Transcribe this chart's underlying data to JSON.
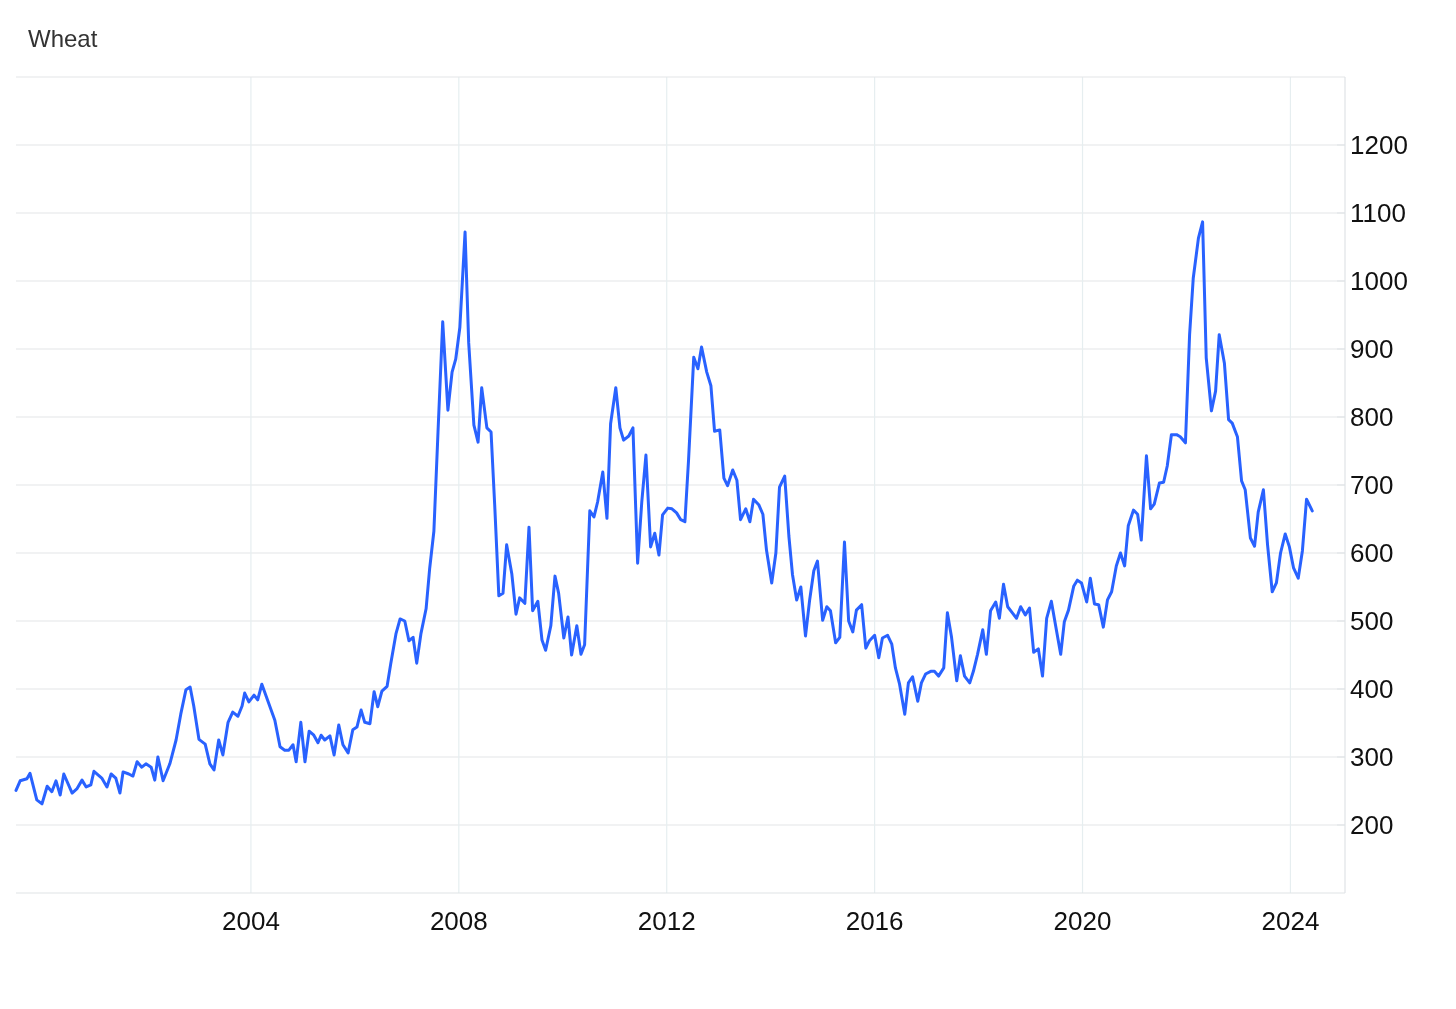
{
  "chart_data": {
    "type": "line",
    "title": "Wheat",
    "grid": true,
    "xlim": [
      1999.48,
      2025.05
    ],
    "xticks": [
      2004,
      2008,
      2012,
      2016,
      2020,
      2024
    ],
    "ylim": [
      100,
      1300
    ],
    "yticks": [
      200,
      300,
      400,
      500,
      600,
      700,
      800,
      900,
      1000,
      1100,
      1200
    ],
    "series": [
      {
        "color": "#2962ff",
        "x": [
          1999.48,
          1999.56,
          1999.69,
          1999.75,
          1999.88,
          1999.98,
          2000.08,
          2000.17,
          2000.25,
          2000.33,
          2000.4,
          2000.56,
          2000.65,
          2000.75,
          2000.83,
          2000.92,
          2000.98,
          2001.13,
          2001.23,
          2001.31,
          2001.4,
          2001.48,
          2001.54,
          2001.65,
          2001.73,
          2001.81,
          2001.9,
          2001.98,
          2002.08,
          2002.15,
          2002.21,
          2002.31,
          2002.44,
          2002.56,
          2002.65,
          2002.75,
          2002.83,
          2002.9,
          2003.0,
          2003.12,
          2003.21,
          2003.29,
          2003.38,
          2003.46,
          2003.56,
          2003.65,
          2003.75,
          2003.83,
          2003.88,
          2003.96,
          2004.06,
          2004.13,
          2004.21,
          2004.46,
          2004.56,
          2004.65,
          2004.73,
          2004.81,
          2004.87,
          2004.96,
          2005.04,
          2005.12,
          2005.21,
          2005.29,
          2005.35,
          2005.42,
          2005.52,
          2005.6,
          2005.69,
          2005.77,
          2005.87,
          2005.96,
          2006.04,
          2006.12,
          2006.19,
          2006.29,
          2006.37,
          2006.44,
          2006.52,
          2006.62,
          2006.69,
          2006.79,
          2006.87,
          2006.96,
          2007.04,
          2007.12,
          2007.19,
          2007.27,
          2007.37,
          2007.44,
          2007.52,
          2007.6,
          2007.69,
          2007.79,
          2007.87,
          2007.94,
          2008.02,
          2008.12,
          2008.19,
          2008.29,
          2008.37,
          2008.44,
          2008.54,
          2008.62,
          2008.69,
          2008.77,
          2008.85,
          2008.92,
          2009.02,
          2009.1,
          2009.17,
          2009.27,
          2009.35,
          2009.42,
          2009.52,
          2009.6,
          2009.67,
          2009.77,
          2009.85,
          2009.92,
          2010.02,
          2010.1,
          2010.17,
          2010.27,
          2010.35,
          2010.42,
          2010.52,
          2010.6,
          2010.67,
          2010.77,
          2010.85,
          2010.92,
          2011.02,
          2011.1,
          2011.17,
          2011.27,
          2011.35,
          2011.44,
          2011.52,
          2011.6,
          2011.69,
          2011.77,
          2011.85,
          2011.92,
          2012.02,
          2012.1,
          2012.19,
          2012.27,
          2012.35,
          2012.42,
          2012.52,
          2012.6,
          2012.67,
          2012.77,
          2012.85,
          2012.92,
          2013.02,
          2013.1,
          2013.17,
          2013.27,
          2013.35,
          2013.42,
          2013.52,
          2013.6,
          2013.67,
          2013.77,
          2013.85,
          2013.92,
          2014.02,
          2014.1,
          2014.17,
          2014.27,
          2014.35,
          2014.42,
          2014.5,
          2014.58,
          2014.67,
          2014.75,
          2014.83,
          2014.9,
          2015.0,
          2015.08,
          2015.15,
          2015.25,
          2015.33,
          2015.42,
          2015.5,
          2015.58,
          2015.65,
          2015.75,
          2015.83,
          2015.9,
          2016.0,
          2016.08,
          2016.15,
          2016.25,
          2016.33,
          2016.4,
          2016.48,
          2016.58,
          2016.65,
          2016.73,
          2016.83,
          2016.9,
          2016.98,
          2017.08,
          2017.15,
          2017.23,
          2017.33,
          2017.4,
          2017.48,
          2017.58,
          2017.65,
          2017.73,
          2017.83,
          2017.9,
          2017.98,
          2018.08,
          2018.15,
          2018.23,
          2018.33,
          2018.4,
          2018.48,
          2018.56,
          2018.65,
          2018.73,
          2018.81,
          2018.9,
          2018.98,
          2019.06,
          2019.15,
          2019.23,
          2019.31,
          2019.4,
          2019.48,
          2019.58,
          2019.65,
          2019.73,
          2019.83,
          2019.9,
          2019.98,
          2020.08,
          2020.15,
          2020.23,
          2020.31,
          2020.4,
          2020.48,
          2020.56,
          2020.65,
          2020.73,
          2020.81,
          2020.88,
          2020.98,
          2021.06,
          2021.13,
          2021.23,
          2021.31,
          2021.38,
          2021.48,
          2021.56,
          2021.63,
          2021.71,
          2021.81,
          2021.88,
          2021.98,
          2022.06,
          2022.13,
          2022.23,
          2022.31,
          2022.38,
          2022.48,
          2022.56,
          2022.63,
          2022.73,
          2022.81,
          2022.88,
          2022.98,
          2023.06,
          2023.13,
          2023.23,
          2023.31,
          2023.38,
          2023.48,
          2023.56,
          2023.65,
          2023.73,
          2023.81,
          2023.9,
          2023.98,
          2024.06,
          2024.15,
          2024.23,
          2024.31,
          2024.42
        ],
        "values": [
          251,
          265,
          268,
          276,
          237,
          231,
          257,
          249,
          265,
          244,
          275,
          247,
          253,
          266,
          256,
          259,
          279,
          269,
          256,
          275,
          269,
          247,
          278,
          275,
          272,
          293,
          285,
          290,
          285,
          266,
          300,
          265,
          290,
          325,
          363,
          399,
          403,
          375,
          326,
          319,
          290,
          281,
          325,
          303,
          351,
          366,
          360,
          375,
          394,
          381,
          391,
          384,
          407,
          354,
          315,
          310,
          310,
          318,
          293,
          351,
          293,
          338,
          332,
          321,
          332,
          325,
          331,
          303,
          347,
          318,
          306,
          340,
          344,
          369,
          351,
          349,
          396,
          374,
          397,
          404,
          437,
          481,
          503,
          500,
          471,
          476,
          438,
          481,
          518,
          578,
          632,
          779,
          940,
          810,
          866,
          885,
          932,
          1072,
          909,
          788,
          763,
          843,
          784,
          778,
          671,
          537,
          541,
          612,
          569,
          510,
          534,
          526,
          638,
          515,
          529,
          472,
          457,
          493,
          566,
          541,
          475,
          506,
          450,
          493,
          451,
          465,
          662,
          653,
          675,
          719,
          651,
          790,
          843,
          784,
          766,
          772,
          784,
          585,
          675,
          744,
          609,
          629,
          597,
          656,
          666,
          665,
          659,
          649,
          646,
          737,
          888,
          871,
          903,
          866,
          846,
          779,
          781,
          710,
          699,
          722,
          707,
          649,
          665,
          646,
          679,
          671,
          657,
          604,
          556,
          600,
          697,
          713,
          625,
          568,
          531,
          550,
          478,
          531,
          574,
          588,
          501,
          521,
          515,
          468,
          476,
          616,
          500,
          484,
          516,
          524,
          460,
          471,
          479,
          446,
          475,
          479,
          466,
          431,
          407,
          363,
          409,
          418,
          382,
          409,
          422,
          426,
          426,
          419,
          431,
          512,
          476,
          412,
          449,
          419,
          409,
          426,
          451,
          487,
          451,
          515,
          528,
          504,
          554,
          521,
          512,
          504,
          521,
          509,
          519,
          454,
          459,
          419,
          504,
          529,
          494,
          451,
          499,
          516,
          551,
          560,
          556,
          528,
          563,
          525,
          524,
          491,
          531,
          543,
          581,
          600,
          581,
          640,
          663,
          657,
          619,
          743,
          665,
          672,
          703,
          704,
          728,
          774,
          774,
          771,
          762,
          921,
          1004,
          1063,
          1087,
          887,
          809,
          838,
          921,
          879,
          796,
          791,
          771,
          706,
          693,
          622,
          610,
          660,
          693,
          612,
          543,
          556,
          600,
          628,
          609,
          578,
          563,
          603,
          679,
          662
        ]
      }
    ]
  }
}
